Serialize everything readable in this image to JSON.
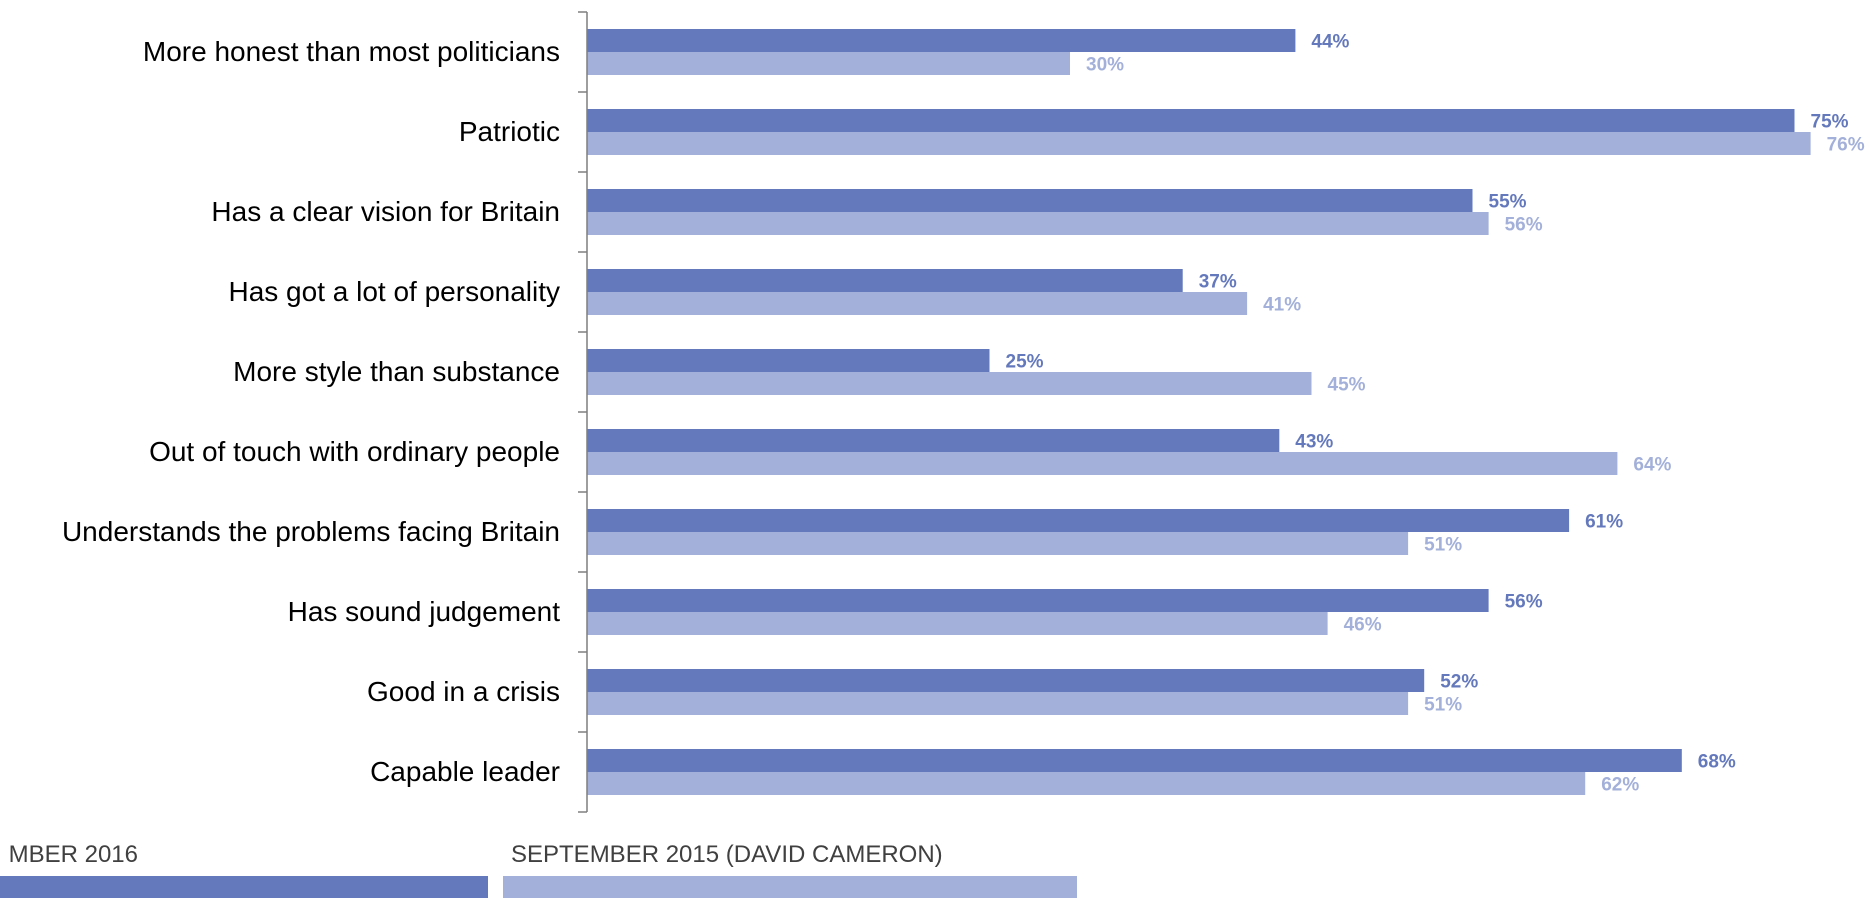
{
  "chart_data": {
    "type": "bar",
    "orientation": "horizontal",
    "categories": [
      "More honest than most politicians",
      "Patriotic",
      "Has a clear vision for Britain",
      "Has got a lot of personality",
      "More style than substance",
      "Out of touch with ordinary people",
      "Understands the problems facing Britain",
      "Has sound judgement",
      "Good in a crisis",
      "Capable leader"
    ],
    "series": [
      {
        "name": "MBER 2016",
        "color": "#6478bc",
        "values": [
          44,
          75,
          55,
          37,
          25,
          43,
          61,
          56,
          52,
          68
        ],
        "labels": [
          "44%",
          "75%",
          "55%",
          "37%",
          "25%",
          "43%",
          "61%",
          "56%",
          "52%",
          "68%"
        ]
      },
      {
        "name": "SEPTEMBER 2015 (DAVID CAMERON)",
        "color": "#a3b0d9",
        "values": [
          30,
          76,
          56,
          41,
          45,
          64,
          51,
          46,
          51,
          62
        ],
        "labels": [
          "30%",
          "76%",
          "56%",
          "41%",
          "45%",
          "64%",
          "51%",
          "46%",
          "51%",
          "62%"
        ]
      }
    ],
    "xlim": [
      0,
      100
    ],
    "grid": false,
    "legend_position": "bottom"
  }
}
